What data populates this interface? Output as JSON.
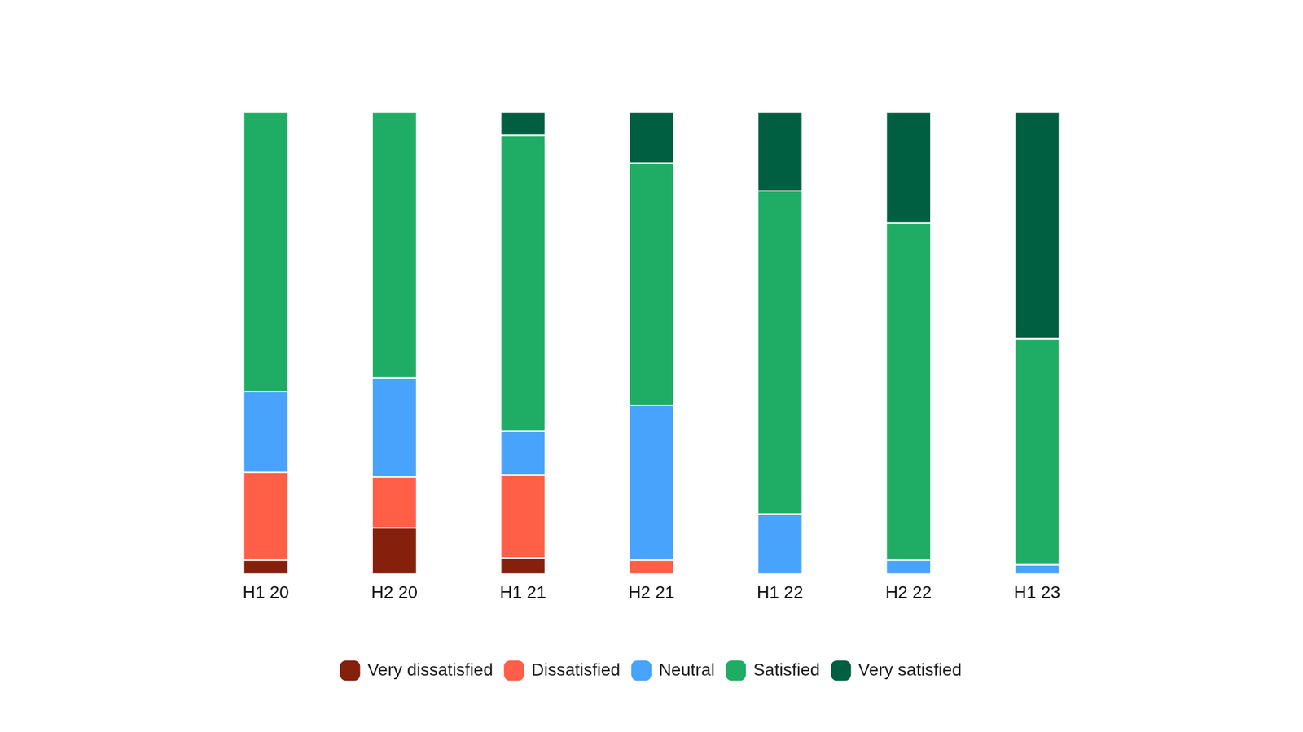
{
  "chart_data": {
    "type": "bar",
    "stacked": true,
    "categories": [
      "H1 20",
      "H2 20",
      "H1 21",
      "H2 21",
      "H1 22",
      "H2 22",
      "H1 23"
    ],
    "series": [
      {
        "name": "Very dissatisfied",
        "color": "#85200c",
        "values": [
          3,
          10,
          3.5,
          0,
          0,
          0,
          0
        ]
      },
      {
        "name": "Dissatisfied",
        "color": "#ff5e47",
        "values": [
          19,
          11,
          18,
          3,
          0,
          0,
          0
        ]
      },
      {
        "name": "Neutral",
        "color": "#47a3fb",
        "values": [
          17.5,
          21.5,
          9.5,
          33.5,
          13,
          3,
          2
        ]
      },
      {
        "name": "Satisfied",
        "color": "#1fad66",
        "values": [
          60.5,
          57.5,
          64,
          52.5,
          70,
          73,
          49
        ]
      },
      {
        "name": "Very satisfied",
        "color": "#005f40",
        "values": [
          0,
          0,
          5,
          11,
          17,
          24,
          49
        ]
      }
    ],
    "ylim": [
      0,
      100
    ],
    "legend": "bottom",
    "grid": false,
    "tick_labels": "x"
  }
}
